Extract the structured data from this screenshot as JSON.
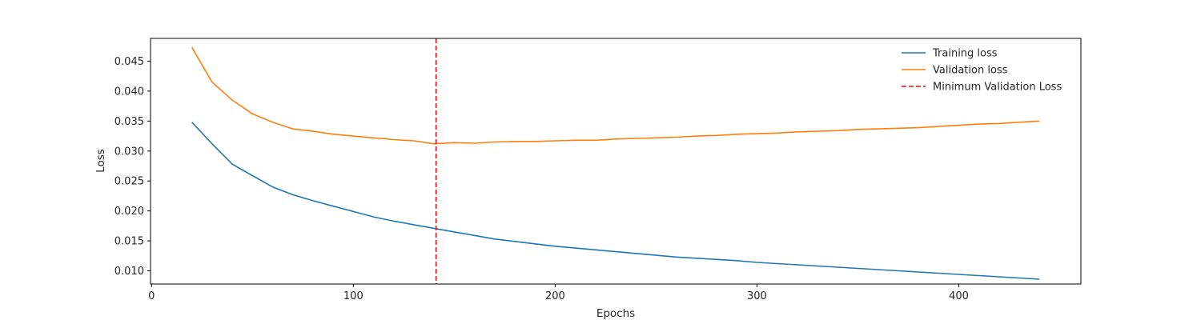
{
  "chart_data": {
    "type": "line",
    "title": "",
    "xlabel": "Epochs",
    "ylabel": "Loss",
    "xlim": [
      -0.5,
      460.5
    ],
    "ylim": [
      0.0078,
      0.0488
    ],
    "xticks": [
      0,
      100,
      200,
      300,
      400
    ],
    "xtick_labels": [
      "0",
      "100",
      "200",
      "300",
      "400"
    ],
    "yticks": [
      0.01,
      0.015,
      0.02,
      0.025,
      0.03,
      0.035,
      0.04,
      0.045
    ],
    "ytick_labels": [
      "0.010",
      "0.015",
      "0.020",
      "0.025",
      "0.030",
      "0.035",
      "0.040",
      "0.045"
    ],
    "grid": false,
    "legend_position": "top-right",
    "x": [
      20,
      30,
      40,
      50,
      60,
      70,
      80,
      90,
      100,
      110,
      120,
      130,
      140,
      150,
      160,
      170,
      180,
      190,
      200,
      210,
      220,
      230,
      240,
      250,
      260,
      270,
      280,
      290,
      300,
      310,
      320,
      330,
      340,
      350,
      360,
      370,
      380,
      390,
      400,
      410,
      420,
      430,
      440
    ],
    "series": [
      {
        "name": "Training loss",
        "color": "#1f77b4",
        "values": [
          0.0348,
          0.0312,
          0.0278,
          0.0259,
          0.024,
          0.0227,
          0.0217,
          0.0208,
          0.0199,
          0.019,
          0.0183,
          0.0177,
          0.0171,
          0.0165,
          0.0159,
          0.0153,
          0.0149,
          0.0145,
          0.0141,
          0.0138,
          0.0135,
          0.0132,
          0.0129,
          0.0126,
          0.0123,
          0.0121,
          0.0119,
          0.0117,
          0.0114,
          0.0112,
          0.011,
          0.0108,
          0.0106,
          0.0104,
          0.0102,
          0.01,
          0.0098,
          0.0096,
          0.0094,
          0.0092,
          0.009,
          0.0088,
          0.0086
        ]
      },
      {
        "name": "Validation loss",
        "color": "#ff7f0e",
        "values": [
          0.0473,
          0.0415,
          0.0385,
          0.0362,
          0.0348,
          0.0337,
          0.0333,
          0.0328,
          0.0325,
          0.0322,
          0.0319,
          0.0317,
          0.0312,
          0.0314,
          0.0313,
          0.0315,
          0.0316,
          0.0316,
          0.0317,
          0.0318,
          0.0318,
          0.032,
          0.0321,
          0.0322,
          0.0323,
          0.0325,
          0.0326,
          0.0328,
          0.0329,
          0.033,
          0.0332,
          0.0333,
          0.0334,
          0.0336,
          0.0337,
          0.0338,
          0.0339,
          0.0341,
          0.0343,
          0.0345,
          0.0346,
          0.0348,
          0.035
        ]
      }
    ],
    "vline": {
      "name": "Minimum Validation Loss",
      "x": 141,
      "color": "#ff0000",
      "style": "dashed"
    }
  }
}
